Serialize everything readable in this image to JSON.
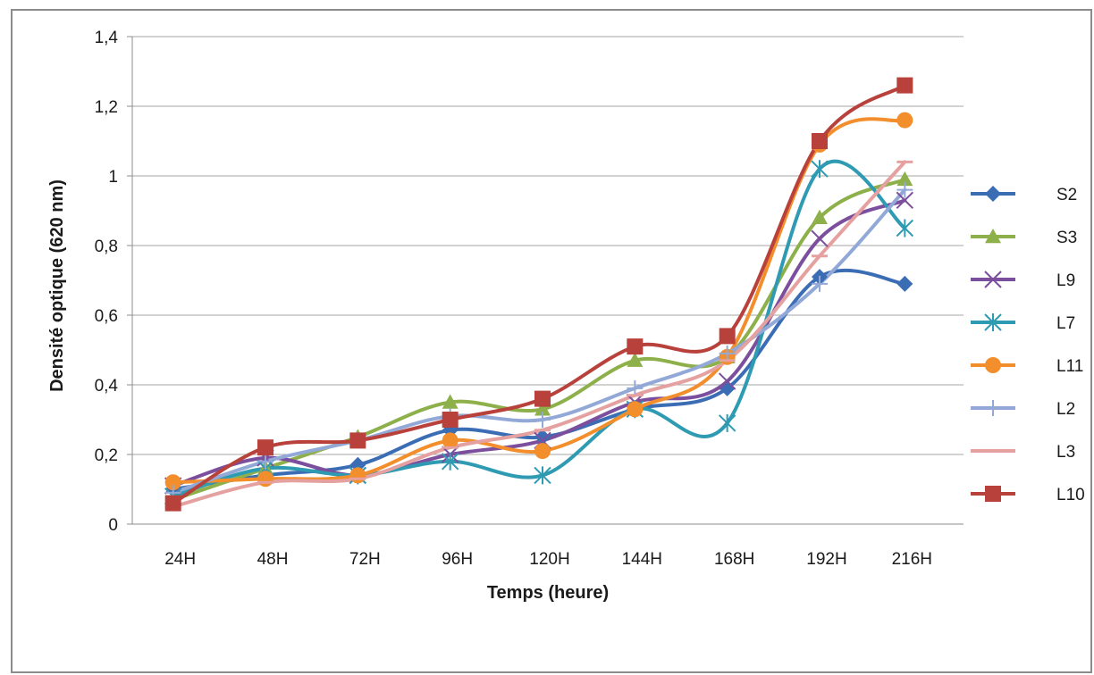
{
  "chart_data": {
    "type": "line",
    "title": "",
    "xlabel": "Temps (heure)",
    "ylabel": "Densité optique (620 nm)",
    "categories": [
      "24H",
      "48H",
      "72H",
      "96H",
      "120H",
      "144H",
      "168H",
      "192H",
      "216H"
    ],
    "ylim": [
      0,
      1.4
    ],
    "yticks": [
      "0",
      "0,2",
      "0,4",
      "0,6",
      "0,8",
      "1",
      "1,2",
      "1,4"
    ],
    "ytick_values": [
      0,
      0.2,
      0.4,
      0.6,
      0.8,
      1.0,
      1.2,
      1.4
    ],
    "grid": true,
    "legend_position": "right",
    "series": [
      {
        "name": "S2",
        "color": "#3b6db5",
        "marker": "diamond",
        "values": [
          0.1,
          0.14,
          0.17,
          0.27,
          0.25,
          0.33,
          0.39,
          0.71,
          0.69
        ]
      },
      {
        "name": "S3",
        "color": "#8db04a",
        "marker": "triangle",
        "values": [
          0.07,
          0.16,
          0.25,
          0.35,
          0.33,
          0.47,
          0.48,
          0.88,
          0.99
        ]
      },
      {
        "name": "L9",
        "color": "#7b4f9e",
        "marker": "x",
        "values": [
          0.11,
          0.19,
          0.14,
          0.2,
          0.24,
          0.35,
          0.41,
          0.82,
          0.93
        ]
      },
      {
        "name": "L7",
        "color": "#2f9bb3",
        "marker": "star",
        "values": [
          0.08,
          0.16,
          0.14,
          0.18,
          0.14,
          0.33,
          0.29,
          1.02,
          0.85
        ]
      },
      {
        "name": "L11",
        "color": "#f28e2b",
        "marker": "circle",
        "values": [
          0.12,
          0.13,
          0.14,
          0.24,
          0.21,
          0.33,
          0.48,
          1.09,
          1.16
        ]
      },
      {
        "name": "L2",
        "color": "#92a9d8",
        "marker": "plus",
        "values": [
          0.09,
          0.18,
          0.24,
          0.31,
          0.3,
          0.39,
          0.49,
          0.69,
          0.96
        ]
      },
      {
        "name": "L3",
        "color": "#e5a0a0",
        "marker": "dash",
        "values": [
          0.05,
          0.12,
          0.13,
          0.22,
          0.27,
          0.37,
          0.47,
          0.77,
          1.04
        ]
      },
      {
        "name": "L10",
        "color": "#b8413b",
        "marker": "square",
        "values": [
          0.06,
          0.22,
          0.24,
          0.3,
          0.36,
          0.51,
          0.54,
          1.1,
          1.26
        ]
      }
    ]
  }
}
